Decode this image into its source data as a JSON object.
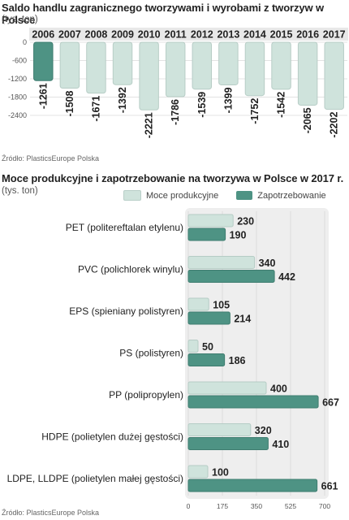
{
  "chart1": {
    "title": "Saldo handlu zagranicznego tworzywami i wyrobami z tworzyw w Polsce",
    "unit": "(tys. ton)",
    "source": "Źródło: PlasticsEurope Polska",
    "colors": {
      "highlight": "#4e9384",
      "bar": "#cfe3dc",
      "axis_band": "#e8e8e8"
    }
  },
  "chart2": {
    "title": "Moce produkcyjne i zapotrzebowanie na tworzywa w Polsce w 2017 r.",
    "unit": "(tys. ton)",
    "source": "Źródło: PlasticsEurope Polska",
    "legend": {
      "capacity": "Moce produkcyjne",
      "demand": "Zapotrzebowanie"
    },
    "colors": {
      "capacity": "#cfe3dc",
      "demand": "#4e9384",
      "band": "#eeeeee"
    }
  },
  "chart_data": [
    {
      "type": "bar",
      "categories": [
        "2006",
        "2007",
        "2008",
        "2009",
        "2010",
        "2011",
        "2012",
        "2013",
        "2014",
        "2015",
        "2016",
        "2017"
      ],
      "values": [
        -1261,
        -1508,
        -1671,
        -1392,
        -2221,
        -1786,
        -1539,
        -1399,
        -1752,
        -1542,
        -2065,
        -2202
      ],
      "value_labels": [
        "-1261",
        "-1508",
        "-1671",
        "-1392",
        "-2221",
        "-1786",
        "-1539",
        "-1399",
        "-1752",
        "-1542",
        "-2065",
        "-2202"
      ],
      "yticks": [
        "0",
        "-600",
        "-1200",
        "-1800",
        "-2400"
      ],
      "ylim": [
        -2400,
        0
      ],
      "title": "Saldo handlu zagranicznego tworzywami i wyrobami z tworzyw w Polsce",
      "ylabel": "(tys. ton)"
    },
    {
      "type": "bar",
      "orientation": "horizontal",
      "categories": [
        "PET (politereftalan etylenu)",
        "PVC (polichlorek winylu)",
        "EPS (spieniany polistyren)",
        "PS (polistyren)",
        "PP (polipropylen)",
        "HDPE (polietylen dużej gęstości)",
        "LDPE, LLDPE (polietylen małej gęstości)"
      ],
      "series": [
        {
          "name": "Moce produkcyjne",
          "values": [
            230,
            340,
            105,
            50,
            400,
            320,
            100
          ]
        },
        {
          "name": "Zapotrzebowanie",
          "values": [
            190,
            442,
            214,
            186,
            667,
            410,
            661
          ]
        }
      ],
      "xticks": [
        "0",
        "175",
        "350",
        "525",
        "700"
      ],
      "xlim": [
        0,
        700
      ],
      "title": "Moce produkcyjne i zapotrzebowanie na tworzywa w Polsce w 2017 r.",
      "xlabel": "(tys. ton)"
    }
  ]
}
